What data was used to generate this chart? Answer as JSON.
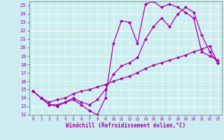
{
  "xlabel": "Windchill (Refroidissement éolien,°C)",
  "bg_color": "#cceef0",
  "line_color": "#aa00aa",
  "grid_color": "#aadddd",
  "xlim": [
    -0.5,
    23.5
  ],
  "ylim": [
    12,
    25.5
  ],
  "xticks": [
    0,
    1,
    2,
    3,
    4,
    5,
    6,
    7,
    8,
    9,
    10,
    11,
    12,
    13,
    14,
    15,
    16,
    17,
    18,
    19,
    20,
    21,
    22,
    23
  ],
  "yticks": [
    12,
    13,
    14,
    15,
    16,
    17,
    18,
    19,
    20,
    21,
    22,
    23,
    24,
    25
  ],
  "line1_x": [
    0,
    1,
    2,
    3,
    4,
    5,
    6,
    7,
    8,
    9,
    10,
    11,
    12,
    13,
    14,
    15,
    16,
    17,
    18,
    19,
    20,
    21,
    22,
    23
  ],
  "line1_y": [
    14.8,
    14.0,
    13.2,
    13.0,
    13.5,
    13.8,
    13.2,
    12.5,
    12.0,
    14.0,
    20.5,
    23.2,
    23.0,
    20.5,
    25.2,
    25.5,
    24.8,
    25.2,
    24.8,
    24.2,
    23.5,
    19.5,
    19.0,
    18.5
  ],
  "line2_x": [
    0,
    1,
    2,
    3,
    4,
    5,
    6,
    7,
    8,
    9,
    10,
    11,
    12,
    13,
    14,
    15,
    16,
    17,
    18,
    19,
    20,
    21,
    22,
    23
  ],
  "line2_y": [
    14.8,
    14.0,
    13.2,
    13.2,
    13.5,
    14.0,
    13.5,
    13.2,
    13.8,
    15.0,
    16.8,
    17.8,
    18.2,
    18.8,
    21.0,
    22.5,
    23.5,
    22.5,
    24.0,
    24.8,
    24.2,
    21.5,
    19.5,
    18.2
  ],
  "line3_x": [
    0,
    1,
    2,
    3,
    4,
    5,
    6,
    7,
    8,
    9,
    10,
    11,
    12,
    13,
    14,
    15,
    16,
    17,
    18,
    19,
    20,
    21,
    22,
    23
  ],
  "line3_y": [
    14.8,
    14.0,
    13.5,
    13.8,
    14.0,
    14.5,
    14.8,
    15.0,
    15.3,
    15.6,
    16.0,
    16.3,
    16.6,
    17.0,
    17.5,
    17.9,
    18.2,
    18.5,
    18.8,
    19.1,
    19.5,
    19.8,
    20.2,
    18.2
  ],
  "marker": "D",
  "markersize": 2.0,
  "linewidth": 0.9
}
